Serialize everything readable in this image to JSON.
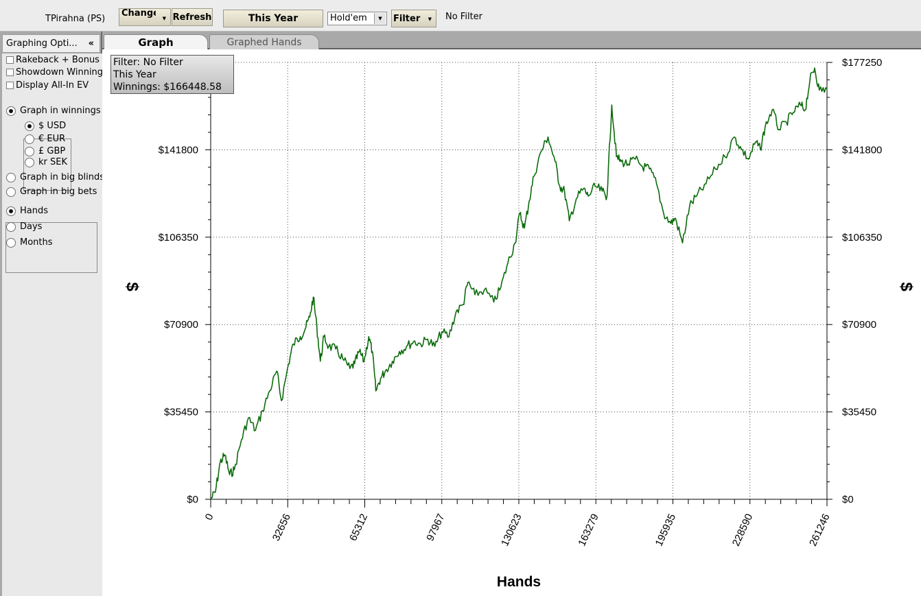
{
  "toolbar": {
    "player_name": "TPirahna (PS)",
    "change_label": "Change",
    "refresh_label": "Refresh",
    "period_label": "This Year",
    "game_value": "Hold'em",
    "filter_label": "Filter",
    "filter_status": "No Filter"
  },
  "sidebar": {
    "title": "Graphing Opti...",
    "collapse_glyph": "«",
    "checkboxes": [
      "Rakeback + Bonus",
      "Showdown Winnings",
      "Display All-In EV"
    ],
    "graph_mode": [
      "Graph in winnings",
      "Graph in big blinds",
      "Graph in big bets"
    ],
    "currencies": [
      "$ USD",
      "€ EUR",
      "£ GBP",
      "kr SEK"
    ],
    "intervals": [
      "Hands",
      "Days",
      "Months"
    ],
    "selected": {
      "graph_mode": 0,
      "currency": 0,
      "interval": 0
    }
  },
  "tabs": {
    "graph": "Graph",
    "graphed_hands": "Graphed Hands"
  },
  "infobox": {
    "filter": "Filter: No Filter",
    "period": "This Year",
    "winnings": "Winnings: $166448.58"
  },
  "chart_data": {
    "type": "line",
    "xlabel": "Hands",
    "ylabel": "$",
    "xlim": [
      0,
      261246
    ],
    "ylim": [
      0,
      177250
    ],
    "x_ticks": [
      0,
      32656,
      65312,
      97967,
      130623,
      163279,
      195935,
      228590,
      261246
    ],
    "y_ticks": [
      0,
      35450,
      70900,
      106350,
      141800,
      177250
    ],
    "y_tick_labels": [
      "$0",
      "$35450",
      "$70900",
      "$106350",
      "$141800",
      "$177250"
    ],
    "grid": true,
    "line_color": "#0b6b0b",
    "series": [
      {
        "x": [
          0,
          2000,
          4000,
          6000,
          8000,
          10000,
          13000,
          16000,
          19000,
          22000,
          25000,
          28000,
          30000,
          33000,
          35000,
          38000,
          40000,
          42000,
          43500,
          45000,
          46500,
          48000,
          50000,
          53000,
          56000,
          59000,
          61000,
          63000,
          65000,
          67000,
          68500,
          70000,
          72000,
          74000,
          77000,
          80000,
          83000,
          86000,
          89000,
          92000,
          95000,
          98000,
          101000,
          104000,
          107000,
          109000,
          112000,
          116000,
          120000,
          123000,
          126000,
          129000,
          131000,
          133000,
          135000,
          137000,
          140000,
          143000,
          146000,
          148000,
          150000,
          152000,
          155000,
          158000,
          160000,
          163000,
          166000,
          168000,
          170000,
          172000,
          174000,
          177000,
          180000,
          183000,
          186000,
          189000,
          192000,
          195000,
          197000,
          200000,
          203000,
          206000,
          210000,
          214000,
          218000,
          222000,
          225000,
          228000,
          231000,
          233000,
          235000,
          238000,
          241000,
          244000,
          247000,
          250000,
          252000,
          254000,
          256000,
          258000,
          261246
        ],
        "values": [
          0,
          3000,
          15000,
          18000,
          10000,
          12000,
          24000,
          33000,
          28000,
          36000,
          44000,
          52000,
          40000,
          55000,
          63000,
          66000,
          69000,
          74000,
          82000,
          70000,
          56000,
          66000,
          62000,
          61000,
          57000,
          53000,
          55000,
          60000,
          56000,
          66000,
          60000,
          44000,
          49000,
          52000,
          56000,
          60000,
          62000,
          64000,
          63000,
          65000,
          62000,
          68000,
          66000,
          76000,
          79000,
          88000,
          83000,
          85000,
          80000,
          86000,
          96000,
          104000,
          116000,
          110000,
          121000,
          131000,
          141000,
          147000,
          137000,
          127000,
          125000,
          113000,
          122000,
          126000,
          123000,
          127000,
          125000,
          123000,
          160000,
          139000,
          137000,
          136000,
          138000,
          135000,
          134000,
          128000,
          116000,
          112000,
          114000,
          104000,
          119000,
          123000,
          128000,
          134000,
          139000,
          147000,
          142000,
          138000,
          145000,
          142000,
          151000,
          158000,
          150000,
          153000,
          157000,
          160000,
          158000,
          170000,
          175000,
          166000,
          166448
        ]
      }
    ]
  }
}
